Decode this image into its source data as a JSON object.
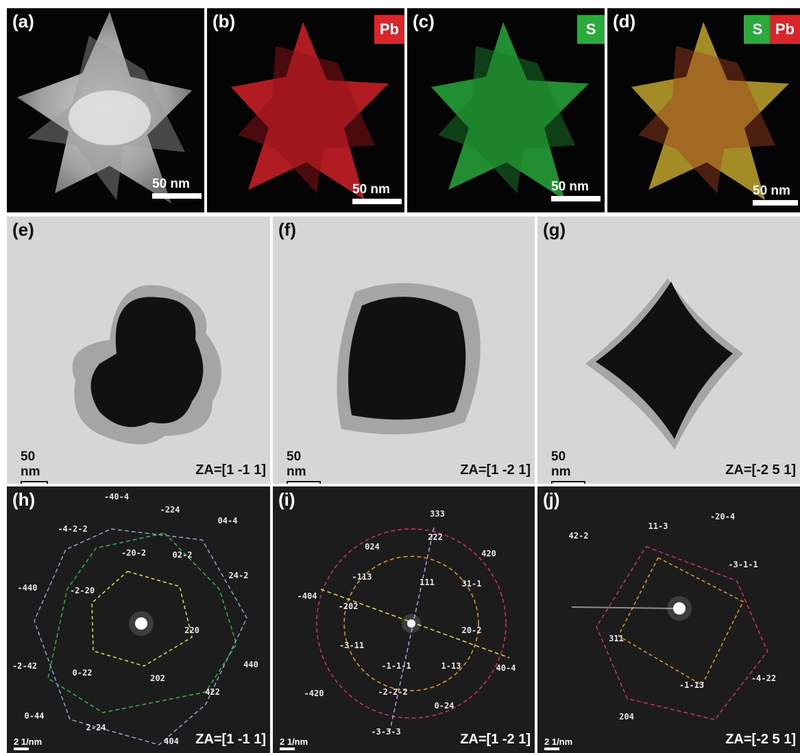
{
  "panels": {
    "a": {
      "label": "(a)",
      "scale": "50 nm"
    },
    "b": {
      "label": "(b)",
      "badge": "Pb",
      "badge_color": "#d9262a",
      "scale": "50 nm"
    },
    "c": {
      "label": "(c)",
      "badge": "S",
      "badge_color": "#2bab3c",
      "scale": "50 nm"
    },
    "d": {
      "label": "(d)",
      "badge_s": "S",
      "badge_pb": "Pb",
      "scale": "50 nm"
    },
    "e": {
      "label": "(e)",
      "scale": "50 nm",
      "za": "ZA=[1 -1 1]"
    },
    "f": {
      "label": "(f)",
      "scale": "50 nm",
      "za": "ZA=[1 -2 1]"
    },
    "g": {
      "label": "(g)",
      "scale": "50 nm",
      "za": "ZA=[-2 5 1]"
    },
    "h": {
      "label": "(h)",
      "scale": "2 1/nm",
      "za": "ZA=[1 -1 1]",
      "indices": [
        "-40-4",
        "-224",
        "04-4",
        "-4-2-2",
        "-20-2",
        "02-2",
        "24-2",
        "-440",
        "-2-20",
        "220",
        "440",
        "-2-42",
        "0-22",
        "202",
        "422",
        "0-44",
        "2-24",
        "404"
      ]
    },
    "i": {
      "label": "(i)",
      "scale": "2 1/nm",
      "za": "ZA=[1 -2 1]",
      "indices": [
        "333",
        "222",
        "024",
        "420",
        "-113",
        "111",
        "31-1",
        "-404",
        "-202",
        "-3-11",
        "20-2",
        "40-4",
        "-1-1-1",
        "1-13",
        "-420",
        "-2-2-2",
        "0-24",
        "-3-3-3"
      ]
    },
    "j": {
      "label": "(j)",
      "scale": "2 1/nm",
      "za": "ZA=[-2 5 1]",
      "indices": [
        "-20-4",
        "11-3",
        "42-2",
        "-3-1-1",
        "311",
        "-4-22",
        "-1-13",
        "204"
      ]
    }
  },
  "colors": {
    "pb": "#d9262a",
    "s": "#2bab3c",
    "dashed_yellow": "#e8e04a",
    "dashed_green": "#33b54a",
    "dashed_blue": "#8aa8c8",
    "dashed_magenta": "#d8326a",
    "dashed_orange": "#e8a020",
    "dashed_violet": "#b7a3e6"
  }
}
